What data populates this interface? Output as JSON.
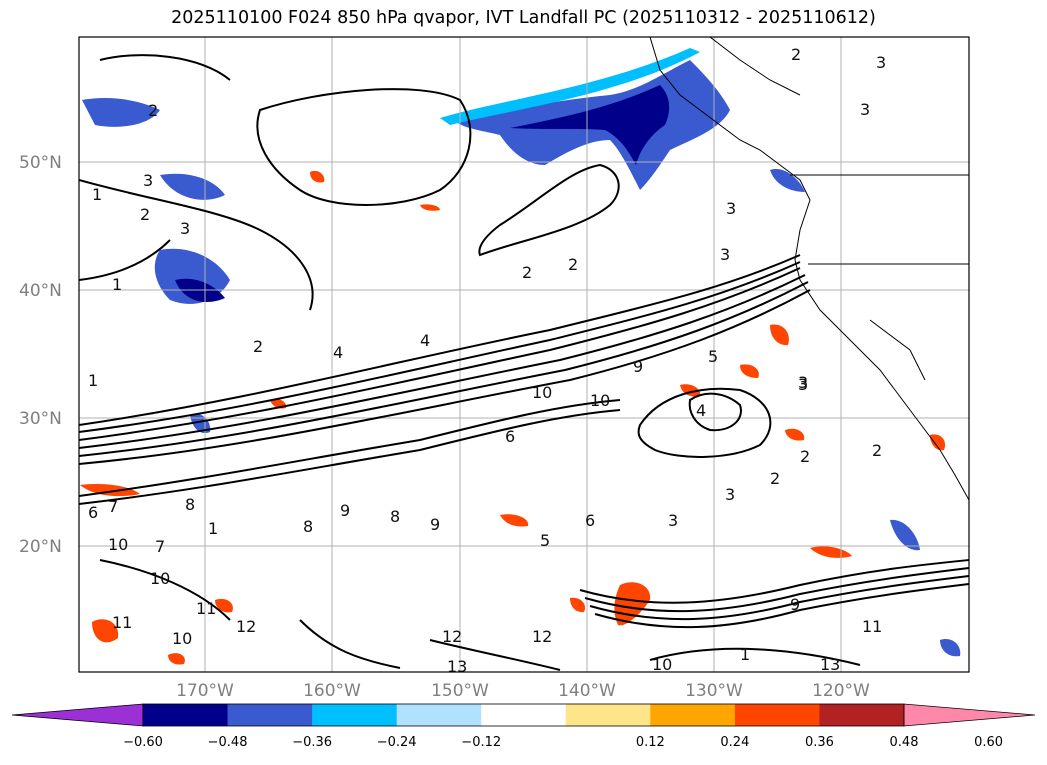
{
  "title": "2025110100 F024 850 hPa qvapor, IVT Landfall PC (2025110312 - 2025110612)",
  "lat_labels": [
    "50°N",
    "40°N",
    "30°N",
    "20°N"
  ],
  "lon_labels": [
    "170°W",
    "160°W",
    "150°W",
    "140°W",
    "130°W",
    "120°W"
  ],
  "colorbar": {
    "ticks": [
      "−0.60",
      "−0.48",
      "−0.36",
      "−0.24",
      "−0.12",
      "0.12",
      "0.24",
      "0.36",
      "0.48",
      "0.60"
    ],
    "colors": [
      "#9b30d6",
      "#00008b",
      "#3a5ad0",
      "#00bfff",
      "#b0e2ff",
      "#ffffff",
      "#ffe58a",
      "#ffa500",
      "#ff4500",
      "#b22222",
      "#ff88aa"
    ]
  },
  "contour_labels": [
    "2",
    "3",
    "1",
    "2",
    "3",
    "3",
    "2",
    "2",
    "1",
    "1",
    "3",
    "3",
    "3",
    "4",
    "4",
    "3",
    "2",
    "2",
    "10",
    "6",
    "9",
    "10",
    "4",
    "5",
    "3",
    "2",
    "2",
    "2",
    "3",
    "3",
    "8",
    "7",
    "6",
    "7",
    "1",
    "8",
    "9",
    "8",
    "9",
    "5",
    "6",
    "10",
    "10",
    "12",
    "11",
    "10",
    "11",
    "12",
    "13",
    "12",
    "9",
    "13",
    "11",
    "10",
    "1"
  ]
}
